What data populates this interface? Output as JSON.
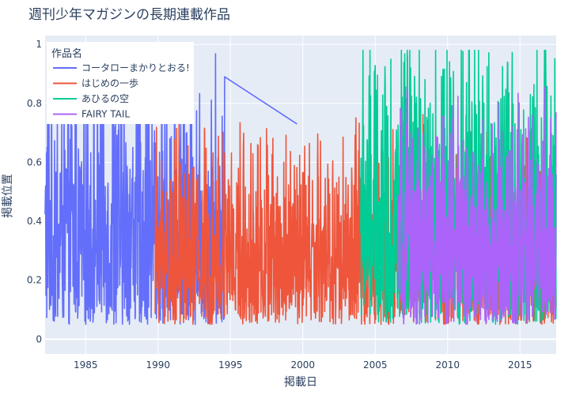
{
  "chart_data": {
    "type": "line",
    "title": "週刊少年マガジンの長期連載作品",
    "xlabel": "掲載日",
    "ylabel": "掲載位置",
    "legend_title": "作品名",
    "legend_position": "top-left",
    "grid": true,
    "xlim": [
      1982.2,
      2017.5
    ],
    "ylim": [
      -0.05,
      1.03
    ],
    "x_ticks": [
      1985,
      1990,
      1995,
      2000,
      2005,
      2010,
      2015
    ],
    "y_ticks": [
      0,
      0.2,
      0.4,
      0.6,
      0.8,
      1
    ],
    "series": [
      {
        "name": "コータローまかりとおる!",
        "color": "#636efa",
        "start": 1982.2,
        "end": 1994.6,
        "level_low": 0.05,
        "level_high": 0.78,
        "tail_points": [
          [
            1994.6,
            0.89
          ],
          [
            1999.6,
            0.73
          ]
        ]
      },
      {
        "name": "はじめの一歩",
        "color": "#ef553b",
        "start": 1989.8,
        "end": 2017.5,
        "level_low": 0.05,
        "level_high": 0.58
      },
      {
        "name": "あひるの空",
        "color": "#00cc96",
        "start": 2004.0,
        "end": 2017.5,
        "level_low": 0.05,
        "level_high": 0.85
      },
      {
        "name": "FAIRY TAIL",
        "color": "#ab63fa",
        "start": 2006.6,
        "end": 2017.5,
        "level_low": 0.05,
        "level_high": 0.65
      }
    ]
  }
}
